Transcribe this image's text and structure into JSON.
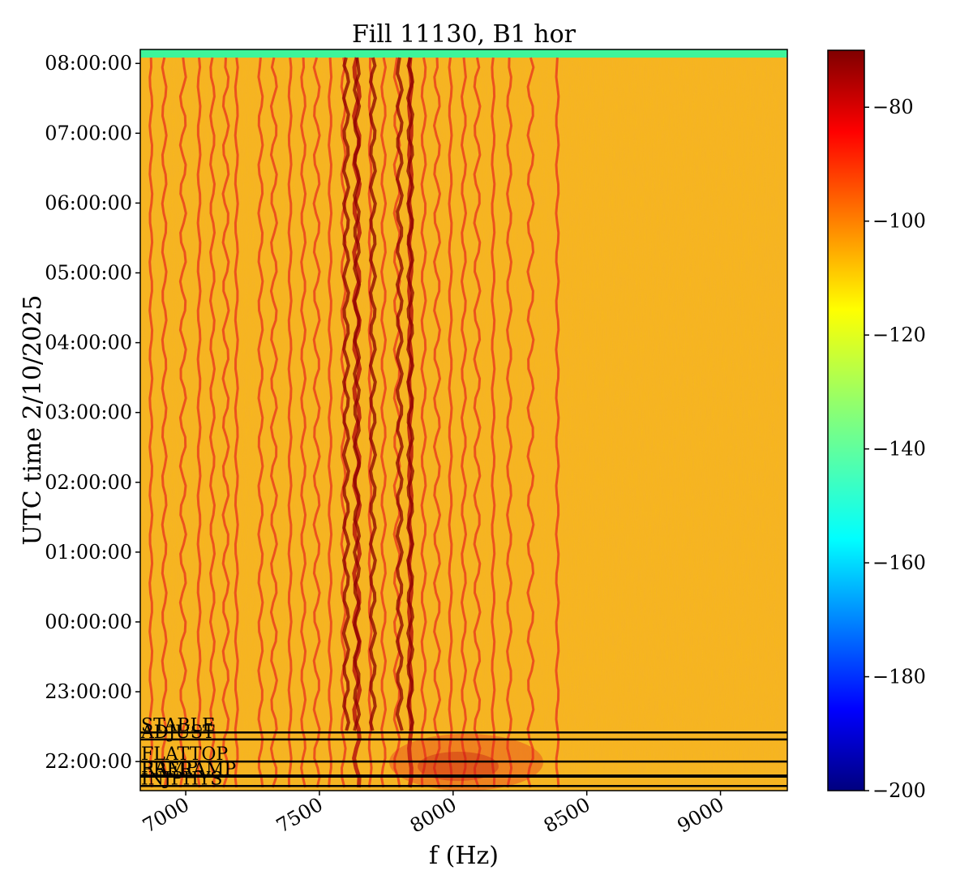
{
  "chart_data": {
    "type": "heatmap",
    "title": "Fill 11130, B1 hor",
    "xlabel": "f (Hz)",
    "ylabel": "UTC time 2/10/2025",
    "xlim": [
      6830,
      9250
    ],
    "x_ticks": [
      7000,
      7500,
      8000,
      8500,
      9000
    ],
    "x_tick_labels": [
      "7000",
      "7500",
      "8000",
      "8500",
      "9000"
    ],
    "time_axis": {
      "start": "21:35:00",
      "end": "08:12:00",
      "ticks": [
        "22:00:00",
        "23:00:00",
        "00:00:00",
        "01:00:00",
        "02:00:00",
        "03:00:00",
        "04:00:00",
        "05:00:00",
        "06:00:00",
        "07:00:00",
        "08:00:00"
      ]
    },
    "colorbar": {
      "colormap": "jet",
      "range": [
        -200,
        -70
      ],
      "ticks": [
        -80,
        -100,
        -120,
        -140,
        -160,
        -180,
        -200
      ],
      "tick_labels": [
        "−80",
        "−100",
        "−120",
        "−140",
        "−160",
        "−180",
        "−200"
      ]
    },
    "background_level": -105,
    "line_frequencies": [
      6870,
      6920,
      6990,
      7050,
      7100,
      7150,
      7190,
      7280,
      7330,
      7390,
      7440,
      7490,
      7540,
      7590,
      7640,
      7690,
      7740,
      7790,
      7840,
      7890,
      7940,
      7990,
      8040,
      8090,
      8150,
      8210,
      8290,
      8390
    ],
    "strong_lines": [
      7600,
      7640,
      7700,
      7800,
      7840
    ],
    "phases": [
      {
        "label": "STABLE",
        "time": "22:25:00"
      },
      {
        "label": "ADJUST",
        "time": "22:19:00"
      },
      {
        "label": "FLATTOP",
        "time": "22:00:00"
      },
      {
        "label": "RAMP",
        "time": "21:48:00"
      },
      {
        "label": "PRERAMP",
        "time": "21:47:00"
      },
      {
        "label": "INJPHYS",
        "time": "21:39:00"
      }
    ]
  }
}
